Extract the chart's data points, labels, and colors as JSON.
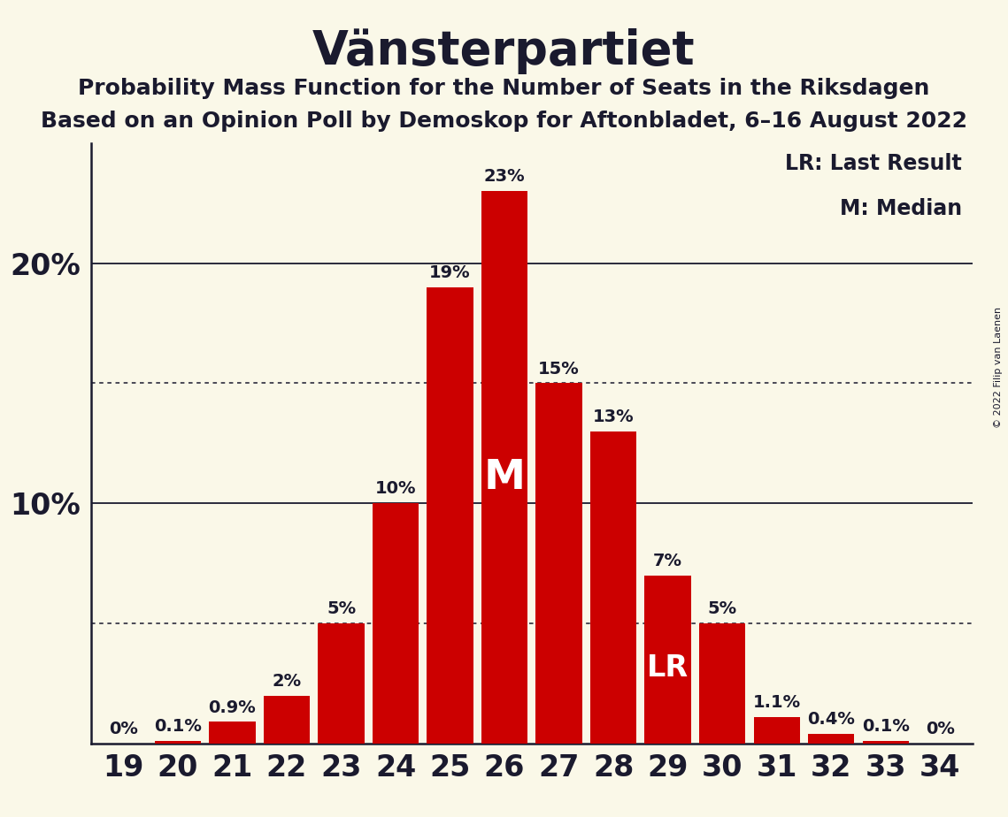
{
  "title": "Vänsterpartiet",
  "subtitle1": "Probability Mass Function for the Number of Seats in the Riksdagen",
  "subtitle2": "Based on an Opinion Poll by Demoskop for Aftonbladet, 6–16 August 2022",
  "copyright": "© 2022 Filip van Laenen",
  "seats": [
    19,
    20,
    21,
    22,
    23,
    24,
    25,
    26,
    27,
    28,
    29,
    30,
    31,
    32,
    33,
    34
  ],
  "probabilities": [
    0.0,
    0.1,
    0.9,
    2.0,
    5.0,
    10.0,
    19.0,
    23.0,
    15.0,
    13.0,
    7.0,
    5.0,
    1.1,
    0.4,
    0.1,
    0.0
  ],
  "labels": [
    "0%",
    "0.1%",
    "0.9%",
    "2%",
    "5%",
    "10%",
    "19%",
    "23%",
    "15%",
    "13%",
    "7%",
    "5%",
    "1.1%",
    "0.4%",
    "0.1%",
    "0%"
  ],
  "bar_color": "#cc0000",
  "background_color": "#faf8e8",
  "text_color": "#1a1a2e",
  "median_seat": 26,
  "lr_seat": 29,
  "solid_gridlines": [
    10.0,
    20.0
  ],
  "dotted_gridlines": [
    5.0,
    15.0
  ],
  "legend_lr": "LR: Last Result",
  "legend_m": "M: Median",
  "ylim": [
    0,
    25
  ],
  "title_fontsize": 38,
  "subtitle_fontsize": 18,
  "axis_label_fontsize": 24,
  "bar_label_fontsize": 14,
  "tick_fontsize": 24,
  "legend_fontsize": 17,
  "median_label_fontsize": 34,
  "lr_label_fontsize": 24,
  "copyright_fontsize": 8
}
